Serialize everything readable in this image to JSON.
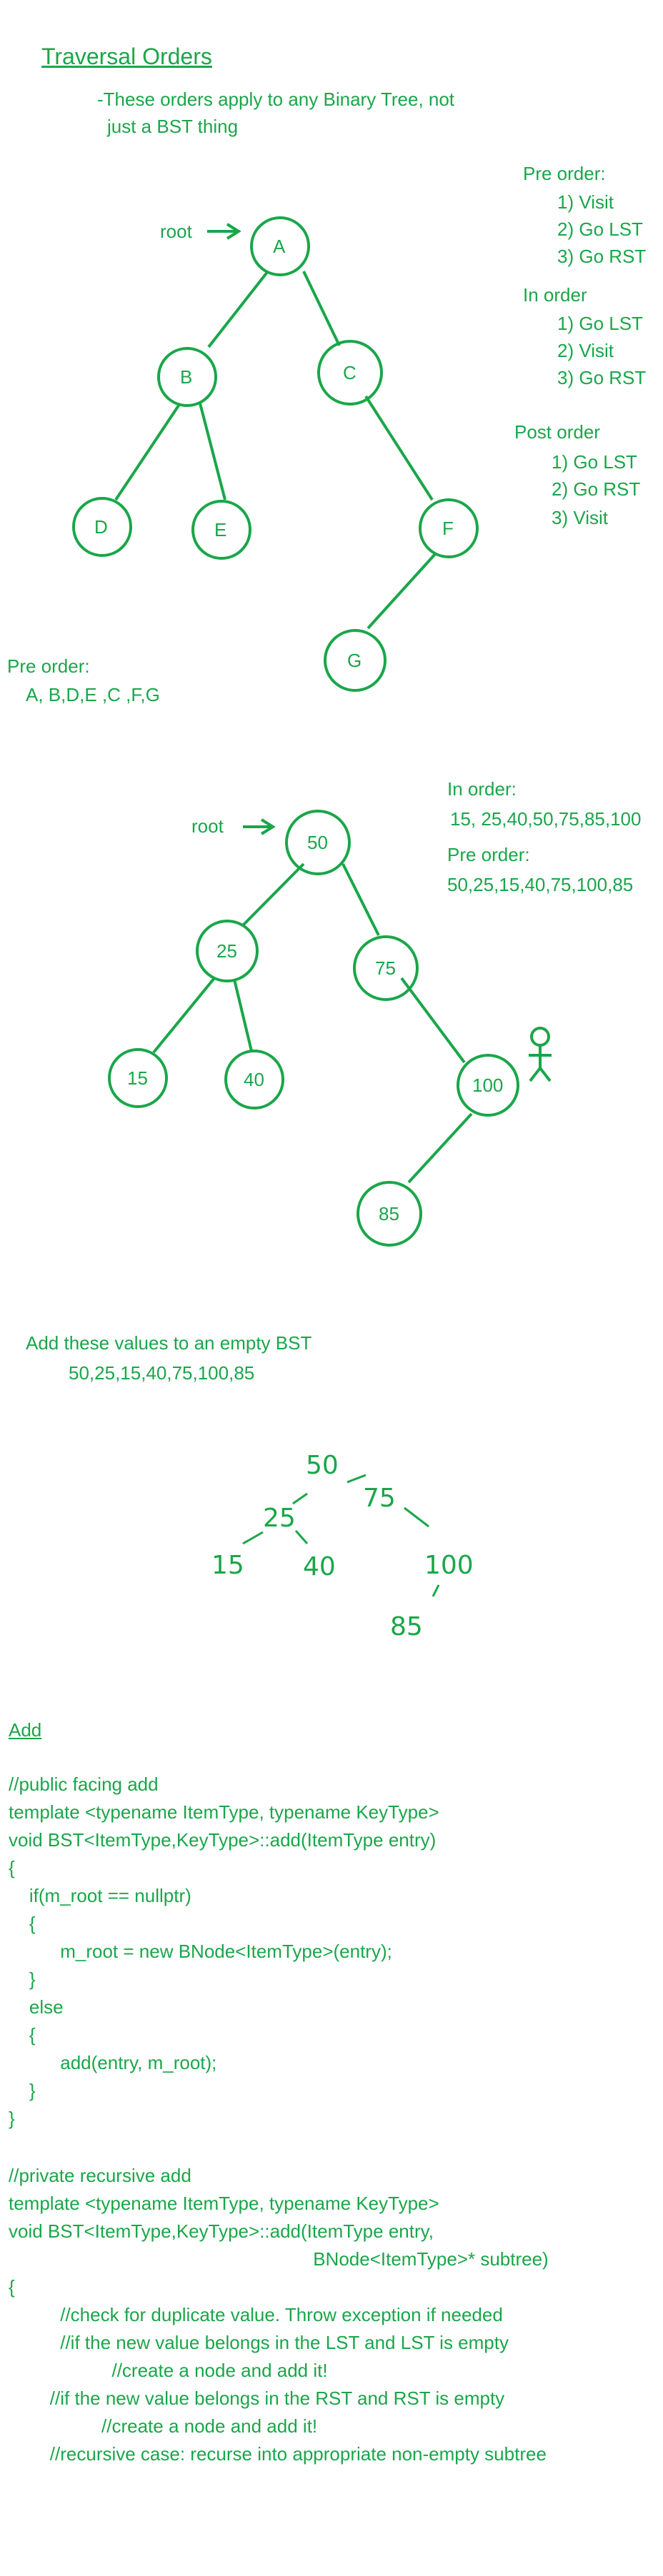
{
  "title": "Traversal Orders",
  "note": [
    "-These orders apply to any Binary Tree, not",
    "just a BST thing"
  ],
  "tree1": {
    "root_label": "root",
    "nodes": [
      "A",
      "B",
      "C",
      "D",
      "E",
      "F",
      "G"
    ]
  },
  "orders": {
    "preorder": {
      "title": "Pre order:",
      "steps": [
        "1) Visit",
        "2) Go LST",
        "3) Go RST"
      ]
    },
    "inorder": {
      "title": "In order",
      "steps": [
        "1) Go LST",
        "2) Visit",
        "3) Go RST"
      ]
    },
    "postorder": {
      "title": "Post order",
      "steps": [
        "1) Go LST",
        "2) Go RST",
        "3) Visit"
      ]
    }
  },
  "tree1_preorder": {
    "label": "Pre order:",
    "value": "A, B,D,E ,C ,F,G"
  },
  "tree2": {
    "root_label": "root",
    "nodes": [
      "50",
      "25",
      "75",
      "15",
      "40",
      "100",
      "85"
    ],
    "inorder_label": "In order:",
    "inorder_value": "15, 25,40,50,75,85,100",
    "preorder_label": "Pre order:",
    "preorder_value": "50,25,15,40,75,100,85"
  },
  "add_values": {
    "label": "Add these values to an empty BST",
    "values": "50,25,15,40,75,100,85"
  },
  "sketch": {
    "n50": "50",
    "n25": "25",
    "n75": "75",
    "n15": "15",
    "n40": "40",
    "n100": "100",
    "n85": "85"
  },
  "add_section": {
    "heading": "Add",
    "public_code": [
      "//public facing add",
      "template <typename ItemType, typename KeyType>",
      "void BST<ItemType,KeyType>::add(ItemType entry)",
      "{",
      "    if(m_root == nullptr)",
      "    {",
      "          m_root = new BNode<ItemType>(entry);",
      "    }",
      "    else",
      "    {",
      "          add(entry, m_root);",
      "    }",
      "}"
    ],
    "private_code": [
      "//private recursive add",
      "template <typename ItemType, typename KeyType>",
      "void BST<ItemType,KeyType>::add(ItemType entry,",
      "                                                           BNode<ItemType>* subtree)",
      "{",
      "          //check for duplicate value. Throw exception if needed",
      "          //if the new value belongs in the LST and LST is empty",
      "                    //create a node and add it!",
      "        //if the new value belongs in the RST and RST is empty",
      "                  //create a node and add it!",
      "        //recursive case: recurse into appropriate non-empty subtree"
    ]
  },
  "colors": {
    "ink": "#1aa64a"
  }
}
